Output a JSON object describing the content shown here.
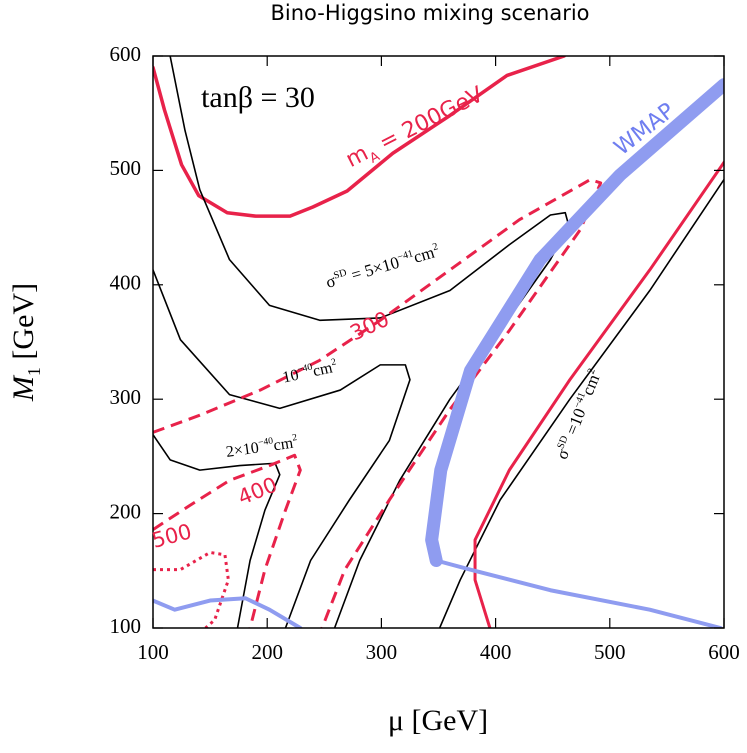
{
  "chart_data": {
    "type": "line",
    "title": "Bino-Higgsino mixing scenario",
    "xlabel": "μ   [GeV]",
    "ylabel_parts": [
      {
        "text": "M"
      },
      {
        "text": "1",
        "shift": "sub"
      },
      {
        "text": "  [GeV]"
      }
    ],
    "xlim": [
      100,
      600
    ],
    "ylim": [
      100,
      600
    ],
    "xticks": [
      100,
      200,
      300,
      400,
      500,
      600
    ],
    "yticks": [
      100,
      200,
      300,
      400,
      500,
      600
    ],
    "series": [
      {
        "color": "#e8224a",
        "width": 3.5,
        "style": "solid",
        "x": [
          100,
          110,
          125,
          140,
          165,
          190,
          220,
          240,
          270,
          310,
          360,
          410,
          460
        ],
        "values": [
          590,
          553,
          505,
          478,
          463,
          460,
          460,
          468,
          482,
          515,
          548,
          583,
          600
        ]
      },
      {
        "color": "#000000",
        "width": 1.6,
        "style": "solid",
        "x": [
          115,
          128,
          141,
          167,
          202,
          246,
          299,
          360,
          412,
          448,
          461,
          464,
          448,
          404,
          360,
          316,
          281,
          259
        ],
        "values": [
          600,
          535,
          483,
          422,
          382,
          369,
          371,
          395,
          435,
          461,
          463,
          452,
          422,
          360,
          300,
          229,
          159,
          100
        ]
      },
      {
        "color": "#000000",
        "width": 1.6,
        "style": "solid",
        "x": [
          100,
          124,
          167,
          211,
          264,
          299,
          321,
          325,
          307,
          272,
          238,
          216
        ],
        "values": [
          413,
          352,
          304,
          292,
          308,
          330,
          330,
          317,
          264,
          212,
          159,
          100
        ]
      },
      {
        "color": "#000000",
        "width": 1.6,
        "style": "solid",
        "x": [
          100,
          115,
          141,
          176,
          207,
          211,
          198,
          185,
          174
        ],
        "values": [
          269,
          247,
          238,
          242,
          244,
          234,
          203,
          159,
          100
        ]
      },
      {
        "color": "#000000",
        "width": 1.6,
        "style": "solid",
        "x": [
          600,
          535,
          465,
          404,
          369,
          351
        ],
        "values": [
          492,
          395,
          300,
          212,
          142,
          100
        ]
      },
      {
        "color": "#e8224a",
        "width": 3,
        "style": "solid",
        "x": [
          600,
          535,
          465,
          412,
          382,
          382,
          395
        ],
        "values": [
          507,
          413,
          317,
          238,
          177,
          142,
          100
        ]
      },
      {
        "color": "#e8224a",
        "width": 3,
        "style": "dashed",
        "x": [
          100,
          141,
          194,
          246,
          299,
          360,
          421,
          483,
          492,
          474,
          412,
          360,
          307,
          268,
          248
        ],
        "values": [
          271,
          286,
          308,
          334,
          369,
          413,
          457,
          492,
          489,
          448,
          360,
          291,
          212,
          151,
          100
        ]
      },
      {
        "color": "#e8224a",
        "width": 3,
        "style": "dashed",
        "x": [
          100,
          132,
          167,
          202,
          224,
          229,
          216,
          198,
          185
        ],
        "values": [
          186,
          207,
          229,
          242,
          251,
          238,
          203,
          151,
          100
        ]
      },
      {
        "color": "#e8224a",
        "width": 3,
        "style": "dotted",
        "x": [
          100,
          124,
          150,
          163,
          166,
          154,
          146
        ],
        "values": [
          151,
          151,
          166,
          164,
          142,
          107,
          100
        ]
      },
      {
        "color": "#8f9cf0",
        "width": 13,
        "style": "solid",
        "x": [
          600,
          509,
          439,
          378,
          352,
          344,
          348
        ],
        "values": [
          575,
          496,
          422,
          325,
          238,
          177,
          159
        ]
      },
      {
        "color": "#8f9cf0",
        "width": 4,
        "style": "solid",
        "x": [
          348,
          378,
          448,
          535,
          597
        ],
        "values": [
          159,
          151,
          133,
          116,
          100
        ]
      },
      {
        "color": "#8f9cf0",
        "width": 4,
        "style": "solid",
        "x": [
          100,
          119,
          150,
          181,
          202,
          229
        ],
        "values": [
          124,
          116,
          124,
          126,
          116,
          100
        ]
      }
    ],
    "annotations": [
      {
        "color": "#000000",
        "parts": [
          {
            "text": "tanβ = 30"
          }
        ]
      },
      {
        "color": "#e8224a",
        "parts": [
          {
            "text": "m"
          },
          {
            "text": "A",
            "shift": "sub"
          },
          {
            "text": " = 200GeV"
          }
        ]
      },
      {
        "color": "#6f7ef0",
        "parts": [
          {
            "text": "WMAP"
          }
        ]
      },
      {
        "color": "#000000",
        "parts": [
          {
            "text": "σ"
          },
          {
            "text": "SD",
            "shift": "sup"
          },
          {
            "text": " = 5×10"
          },
          {
            "text": "−41",
            "shift": "sup"
          },
          {
            "text": "cm"
          },
          {
            "text": "2",
            "shift": "sup"
          }
        ]
      },
      {
        "color": "#e8224a",
        "parts": [
          {
            "text": "300"
          }
        ]
      },
      {
        "color": "#000000",
        "parts": [
          {
            "text": "10"
          },
          {
            "text": "−40",
            "shift": "sup"
          },
          {
            "text": "cm"
          },
          {
            "text": "2",
            "shift": "sup"
          }
        ]
      },
      {
        "color": "#000000",
        "parts": [
          {
            "text": "2×10"
          },
          {
            "text": "−40",
            "shift": "sup"
          },
          {
            "text": "cm"
          },
          {
            "text": "2",
            "shift": "sup"
          }
        ]
      },
      {
        "color": "#e8224a",
        "parts": [
          {
            "text": "400"
          }
        ]
      },
      {
        "color": "#e8224a",
        "parts": [
          {
            "text": "500"
          }
        ]
      },
      {
        "color": "#000000",
        "parts": [
          {
            "text": "σ"
          },
          {
            "text": "SD",
            "shift": "sup"
          },
          {
            "text": " =10"
          },
          {
            "text": "−41",
            "shift": "sup"
          },
          {
            "text": "cm"
          },
          {
            "text": "2",
            "shift": "sup"
          }
        ]
      }
    ]
  }
}
